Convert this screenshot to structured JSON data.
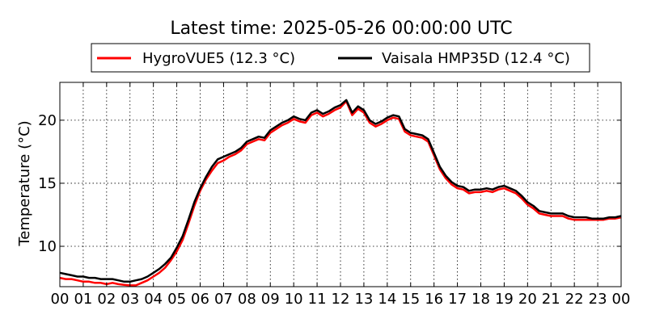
{
  "chart_data": {
    "type": "line",
    "title": "Latest time: 2025-05-26 00:00:00 UTC",
    "xlabel": "",
    "ylabel": "Temperature (°C)",
    "xlim": [
      0,
      24
    ],
    "ylim": [
      6.8,
      23
    ],
    "x_ticks": [
      0,
      1,
      2,
      3,
      4,
      5,
      6,
      7,
      8,
      9,
      10,
      11,
      12,
      13,
      14,
      15,
      16,
      17,
      18,
      19,
      20,
      21,
      22,
      23,
      24
    ],
    "x_tick_labels": [
      "00",
      "01",
      "02",
      "03",
      "04",
      "05",
      "06",
      "07",
      "08",
      "09",
      "10",
      "11",
      "12",
      "13",
      "14",
      "15",
      "16",
      "17",
      "18",
      "19",
      "20",
      "21",
      "22",
      "23",
      "00"
    ],
    "y_ticks": [
      10,
      15,
      20
    ],
    "y_tick_labels": [
      "10",
      "15",
      "20"
    ],
    "grid": true,
    "legend_position": "top",
    "series": [
      {
        "name": "HygroVUE5 (12.3 °C)",
        "color": "#ff0000",
        "x": [
          0,
          0.25,
          0.5,
          0.75,
          1,
          1.25,
          1.5,
          1.75,
          2,
          2.25,
          2.5,
          2.75,
          3,
          3.25,
          3.5,
          3.75,
          4,
          4.25,
          4.5,
          4.75,
          5,
          5.25,
          5.5,
          5.75,
          6,
          6.25,
          6.5,
          6.75,
          7,
          7.25,
          7.5,
          7.75,
          8,
          8.25,
          8.5,
          8.75,
          9,
          9.25,
          9.5,
          9.75,
          10,
          10.25,
          10.5,
          10.75,
          11,
          11.25,
          11.5,
          11.75,
          12,
          12.25,
          12.5,
          12.75,
          13,
          13.25,
          13.5,
          13.75,
          14,
          14.25,
          14.5,
          14.75,
          15,
          15.25,
          15.5,
          15.75,
          16,
          16.25,
          16.5,
          16.75,
          17,
          17.25,
          17.5,
          17.75,
          18,
          18.25,
          18.5,
          18.75,
          19,
          19.25,
          19.5,
          19.75,
          20,
          20.25,
          20.5,
          20.75,
          21,
          21.25,
          21.5,
          21.75,
          22,
          22.25,
          22.5,
          22.75,
          23,
          23.25,
          23.5,
          23.75,
          24
        ],
        "y": [
          7.5,
          7.4,
          7.4,
          7.3,
          7.2,
          7.2,
          7.1,
          7.1,
          7.0,
          7.1,
          7.0,
          6.95,
          6.9,
          6.9,
          7.1,
          7.3,
          7.6,
          7.9,
          8.3,
          8.9,
          9.6,
          10.5,
          11.8,
          13.2,
          14.4,
          15.3,
          16.0,
          16.6,
          16.8,
          17.1,
          17.3,
          17.6,
          18.1,
          18.3,
          18.5,
          18.4,
          19.0,
          19.3,
          19.6,
          19.8,
          20.1,
          19.9,
          19.8,
          20.4,
          20.6,
          20.3,
          20.5,
          20.8,
          21.0,
          21.5,
          20.4,
          20.9,
          20.6,
          19.8,
          19.5,
          19.7,
          20.0,
          20.2,
          20.1,
          19.1,
          18.8,
          18.7,
          18.6,
          18.3,
          17.2,
          16.1,
          15.4,
          14.9,
          14.6,
          14.5,
          14.2,
          14.3,
          14.3,
          14.4,
          14.3,
          14.5,
          14.6,
          14.4,
          14.2,
          13.8,
          13.3,
          13.0,
          12.6,
          12.5,
          12.4,
          12.4,
          12.4,
          12.2,
          12.1,
          12.1,
          12.1,
          12.1,
          12.1,
          12.1,
          12.2,
          12.2,
          12.3
        ]
      },
      {
        "name": "Vaisala HMP35D (12.4 °C)",
        "color": "#000000",
        "x": [
          0,
          0.25,
          0.5,
          0.75,
          1,
          1.25,
          1.5,
          1.75,
          2,
          2.25,
          2.5,
          2.75,
          3,
          3.25,
          3.5,
          3.75,
          4,
          4.25,
          4.5,
          4.75,
          5,
          5.25,
          5.5,
          5.75,
          6,
          6.25,
          6.5,
          6.75,
          7,
          7.25,
          7.5,
          7.75,
          8,
          8.25,
          8.5,
          8.75,
          9,
          9.25,
          9.5,
          9.75,
          10,
          10.25,
          10.5,
          10.75,
          11,
          11.25,
          11.5,
          11.75,
          12,
          12.25,
          12.5,
          12.75,
          13,
          13.25,
          13.5,
          13.75,
          14,
          14.25,
          14.5,
          14.75,
          15,
          15.25,
          15.5,
          15.75,
          16,
          16.25,
          16.5,
          16.75,
          17,
          17.25,
          17.5,
          17.75,
          18,
          18.25,
          18.5,
          18.75,
          19,
          19.25,
          19.5,
          19.75,
          20,
          20.25,
          20.5,
          20.75,
          21,
          21.25,
          21.5,
          21.75,
          22,
          22.25,
          22.5,
          22.75,
          23,
          23.25,
          23.5,
          23.75,
          24
        ],
        "y": [
          7.9,
          7.8,
          7.7,
          7.6,
          7.6,
          7.5,
          7.5,
          7.4,
          7.4,
          7.4,
          7.3,
          7.2,
          7.2,
          7.3,
          7.4,
          7.6,
          7.9,
          8.2,
          8.6,
          9.1,
          9.9,
          10.8,
          12.1,
          13.5,
          14.6,
          15.5,
          16.3,
          16.9,
          17.1,
          17.3,
          17.5,
          17.8,
          18.3,
          18.5,
          18.7,
          18.6,
          19.2,
          19.5,
          19.8,
          20.0,
          20.3,
          20.1,
          20.0,
          20.6,
          20.8,
          20.5,
          20.7,
          21.0,
          21.2,
          21.6,
          20.6,
          21.1,
          20.8,
          20.0,
          19.7,
          19.9,
          20.2,
          20.4,
          20.3,
          19.3,
          19.0,
          18.9,
          18.8,
          18.5,
          17.4,
          16.3,
          15.6,
          15.1,
          14.8,
          14.7,
          14.4,
          14.5,
          14.5,
          14.6,
          14.5,
          14.7,
          14.8,
          14.6,
          14.4,
          14.0,
          13.5,
          13.2,
          12.8,
          12.7,
          12.6,
          12.6,
          12.6,
          12.4,
          12.3,
          12.3,
          12.3,
          12.2,
          12.2,
          12.2,
          12.3,
          12.3,
          12.4
        ]
      }
    ]
  }
}
